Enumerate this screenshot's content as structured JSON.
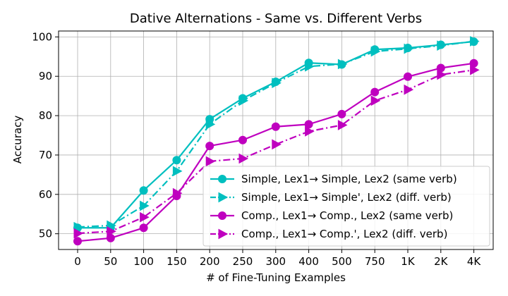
{
  "chart_data": {
    "type": "line",
    "title": "Dative Alternations - Same vs. Different Verbs",
    "xlabel": "# of Fine-Tuning Examples",
    "ylabel": "Accuracy",
    "categories": [
      "0",
      "50",
      "100",
      "150",
      "200",
      "250",
      "300",
      "400",
      "500",
      "750",
      "1K",
      "2K",
      "4K"
    ],
    "ylim": [
      46,
      101.5
    ],
    "yticks": [
      50,
      60,
      70,
      80,
      90,
      100
    ],
    "grid": true,
    "legend_position": "lower-right",
    "series": [
      {
        "name": "Simple, Lex1→ Simple, Lex2 (same verb)",
        "color": "#00bfbf",
        "linestyle": "solid",
        "marker": "circle",
        "values": [
          51.5,
          51.5,
          61.0,
          68.7,
          79.1,
          84.4,
          88.6,
          93.4,
          93.0,
          96.8,
          97.2,
          98.0,
          98.8
        ]
      },
      {
        "name": "Simple, Lex1→ Simple', Lex2 (diff. verb)",
        "color": "#00bfbf",
        "linestyle": "dashdot",
        "marker": "triangle-right",
        "values": [
          51.7,
          52.1,
          57.1,
          65.9,
          77.8,
          83.8,
          88.3,
          92.5,
          93.1,
          96.3,
          97.0,
          97.8,
          98.9
        ]
      },
      {
        "name": "Comp., Lex1→ Comp., Lex2 (same verb)",
        "color": "#bf00bf",
        "linestyle": "solid",
        "marker": "circle",
        "values": [
          48.1,
          48.9,
          51.5,
          59.6,
          72.3,
          73.8,
          77.2,
          77.8,
          80.4,
          86.0,
          89.9,
          92.1,
          93.3
        ]
      },
      {
        "name": "Comp., Lex1→ Comp.', Lex2 (diff. verb)",
        "color": "#bf00bf",
        "linestyle": "dashdot",
        "marker": "triangle-right",
        "values": [
          50.1,
          50.6,
          54.2,
          60.3,
          68.4,
          69.1,
          72.7,
          76.0,
          77.6,
          83.8,
          86.6,
          90.4,
          91.6
        ]
      }
    ]
  }
}
